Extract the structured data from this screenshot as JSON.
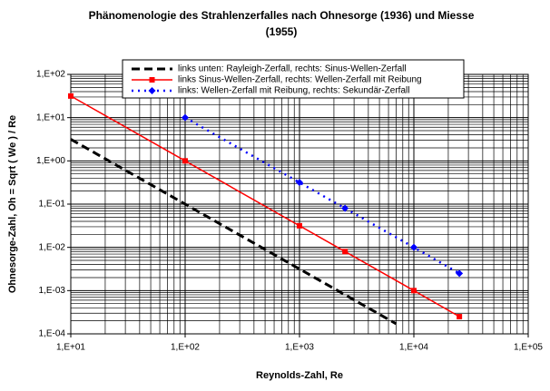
{
  "chart_data": {
    "type": "line",
    "title": [
      "Phänomenologie des Strahlenzerfalles nach Ohnesorge (1936) und Miesse",
      "(1955)"
    ],
    "xlabel": "Reynolds-Zahl,  Re",
    "ylabel": "Ohnesorge-Zahl,  Oh =  Sqrt ( We ) / Re",
    "log_x": true,
    "log_y": true,
    "grid": true,
    "xlim": [
      10,
      100000
    ],
    "xticks": [
      {
        "value": 10,
        "label": "1,E+01"
      },
      {
        "value": 100,
        "label": "1,E+02"
      },
      {
        "value": 1000,
        "label": "1,E+03"
      },
      {
        "value": 10000,
        "label": "1,E+04"
      },
      {
        "value": 100000,
        "label": "1,E+05"
      }
    ],
    "ylim": [
      0.0001,
      100
    ],
    "yticks": [
      {
        "value": 0.0001,
        "label": "1,E-04"
      },
      {
        "value": 0.001,
        "label": "1,E-03"
      },
      {
        "value": 0.01,
        "label": "1,E-02"
      },
      {
        "value": 0.1,
        "label": "1,E-01"
      },
      {
        "value": 1,
        "label": "1,E+00"
      },
      {
        "value": 10,
        "label": "1,E+01"
      },
      {
        "value": 100,
        "label": "1,E+02"
      }
    ],
    "series": [
      {
        "name": "links unten: Rayleigh-Zerfall, rechts: Sinus-Wellen-Zerfall",
        "color": "#000000",
        "dash": "9,5",
        "width": 3,
        "marker": null,
        "x": [
          10,
          100,
          1000,
          7000
        ],
        "values": [
          3.16,
          0.1,
          0.00316,
          0.000171
        ]
      },
      {
        "name": "links Sinus-Wellen-Zerfall, rechts: Wellen-Zerfall mit Reibung",
        "color": "#ff0000",
        "dash": null,
        "width": 1.5,
        "marker": "square",
        "x": [
          10,
          100,
          1000,
          2500,
          10000,
          25000
        ],
        "values": [
          31.6,
          1,
          0.0316,
          0.008,
          0.001,
          0.00025
        ]
      },
      {
        "name": "links: Wellen-Zerfall mit Reibung, rechts: Sekundär-Zerfall",
        "color": "#0000ff",
        "dash": "2,5",
        "width": 2.5,
        "marker": "diamond",
        "x": [
          100,
          1000,
          2500,
          10000,
          25000
        ],
        "values": [
          10,
          0.316,
          0.08,
          0.01,
          0.0025
        ]
      }
    ]
  }
}
